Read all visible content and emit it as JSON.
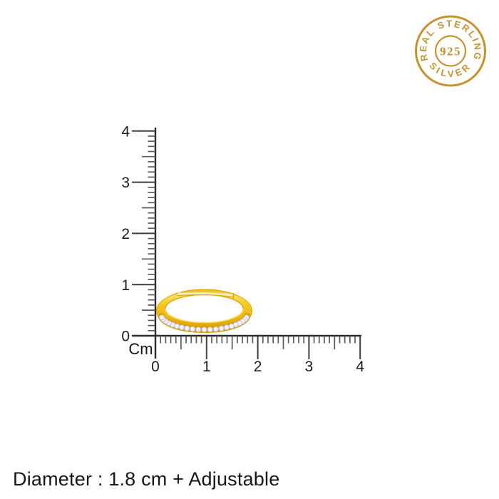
{
  "badge": {
    "top_text": "REAL STERLING",
    "center_text": "925",
    "bottom_text": "SILVER",
    "color": "#C6922F"
  },
  "ruler": {
    "unit_label": "Cm",
    "vertical_labels": [
      "4",
      "3",
      "2",
      "1",
      "0"
    ],
    "horizontal_labels": [
      "0",
      "1",
      "2",
      "3",
      "4"
    ],
    "line_color": "#2b2b2b",
    "major_tick_color": "#3e3e3e",
    "minor_tick_color": "#5a5a5a",
    "label_color": "#1d1d1d"
  },
  "ring": {
    "description": "gold adjustable ring with gemstone band",
    "gold_light": "#FBE98E",
    "gold_mid": "#F3C71F",
    "gold_deep": "#DCA30D",
    "gem_fill": "#F1EEF7",
    "gem_stroke": "#C3BBD2",
    "gem_count": 21
  },
  "caption": {
    "text": "Diameter : 1.8 cm + Adjustable"
  }
}
